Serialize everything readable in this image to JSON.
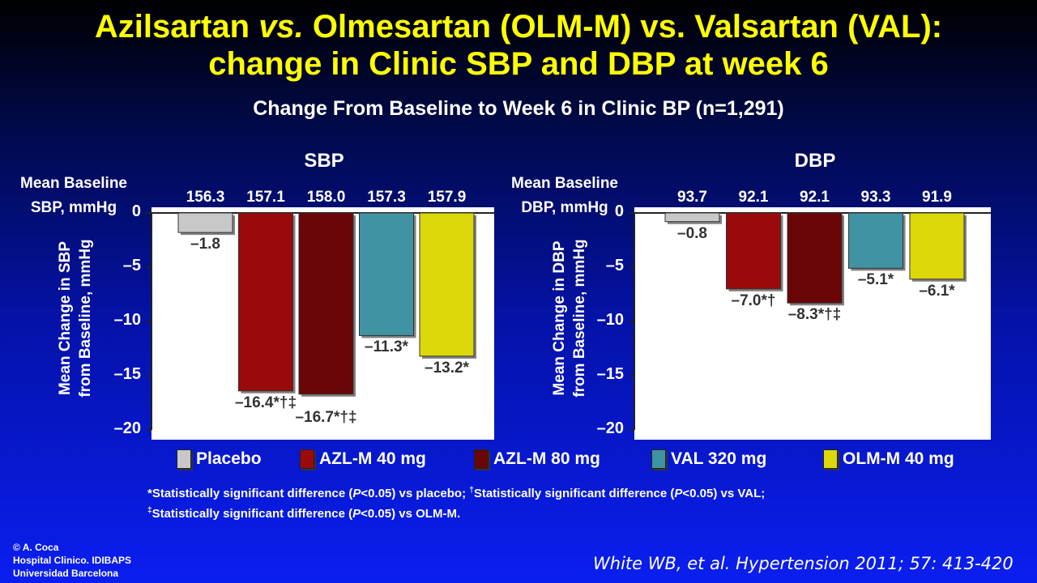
{
  "title": {
    "line1_a": "Azilsartan ",
    "line1_vs": "vs.",
    "line1_b": " Olmesartan (OLM-M) vs. Valsartan (VAL):",
    "line2": "change in Clinic SBP and DBP at week 6"
  },
  "subtitle": "Change From Baseline to Week 6 in Clinic BP (n=1,291)",
  "colors": {
    "placebo": "#c8c8c8",
    "azl40": "#9b0a0a",
    "azl80": "#6a0606",
    "val320": "#3f93a3",
    "olm40": "#dcd80a",
    "title": "#ffff00"
  },
  "legend": [
    {
      "label": "Placebo",
      "color_key": "placebo"
    },
    {
      "label": "AZL-M 40 mg",
      "color_key": "azl40"
    },
    {
      "label": "AZL-M 80 mg",
      "color_key": "azl80"
    },
    {
      "label": "VAL 320 mg",
      "color_key": "val320"
    },
    {
      "label": "OLM-M 40 mg",
      "color_key": "olm40"
    }
  ],
  "chart_data": [
    {
      "type": "bar",
      "title": "SBP",
      "baseline_header_line1": "Mean Baseline",
      "baseline_header_line2": "SBP, mmHg",
      "ylabel_line1": "Mean Change in SBP",
      "ylabel_line2": "from Baseline, mmHg",
      "ylim": [
        -20,
        0
      ],
      "yticks": [
        "0",
        "–5",
        "–10",
        "–15",
        "–20"
      ],
      "categories": [
        "Placebo",
        "AZL-M 40 mg",
        "AZL-M 80 mg",
        "VAL 320 mg",
        "OLM-M 40 mg"
      ],
      "baseline_values": [
        "156.3",
        "157.1",
        "158.0",
        "157.3",
        "157.9"
      ],
      "values": [
        -1.8,
        -16.4,
        -16.7,
        -11.3,
        -13.2
      ],
      "data_labels": [
        "–1.8",
        "–16.4*†‡",
        "–16.7*†‡",
        "–11.3*",
        "–13.2*"
      ]
    },
    {
      "type": "bar",
      "title": "DBP",
      "baseline_header_line1": "Mean Baseline",
      "baseline_header_line2": "DBP, mmHg",
      "ylabel_line1": "Mean Change in DBP",
      "ylabel_line2": "from Baseline, mmHg",
      "ylim": [
        -20,
        0
      ],
      "yticks": [
        "0",
        "–5",
        "–10",
        "–15",
        "–20"
      ],
      "categories": [
        "Placebo",
        "AZL-M 40 mg",
        "AZL-M 80 mg",
        "VAL 320 mg",
        "OLM-M 40 mg"
      ],
      "baseline_values": [
        "93.7",
        "92.1",
        "92.1",
        "93.3",
        "91.9"
      ],
      "values": [
        -0.8,
        -7.0,
        -8.3,
        -5.1,
        -6.1
      ],
      "data_labels": [
        "–0.8",
        "–7.0*†",
        "–8.3*†‡",
        "–5.1*",
        "–6.1*"
      ]
    }
  ],
  "footnote": {
    "line1_a": "*Statistically significant difference (",
    "p": "P",
    "line1_b": "<0.05) vs placebo; ",
    "dagger": "†",
    "line1_c": "Statistically significant difference (",
    "line1_d": "<0.05) vs VAL;",
    "ddagger": "‡",
    "line2_a": "Statistically significant difference (",
    "line2_b": "<0.05) vs OLM-M."
  },
  "credit": {
    "line1": "© A. Coca",
    "line2": "Hospital Clinico. IDIBAPS",
    "line3": "Universidad Barcelona"
  },
  "citation": "White WB, et al. Hypertension 2011; 57: 413-420"
}
